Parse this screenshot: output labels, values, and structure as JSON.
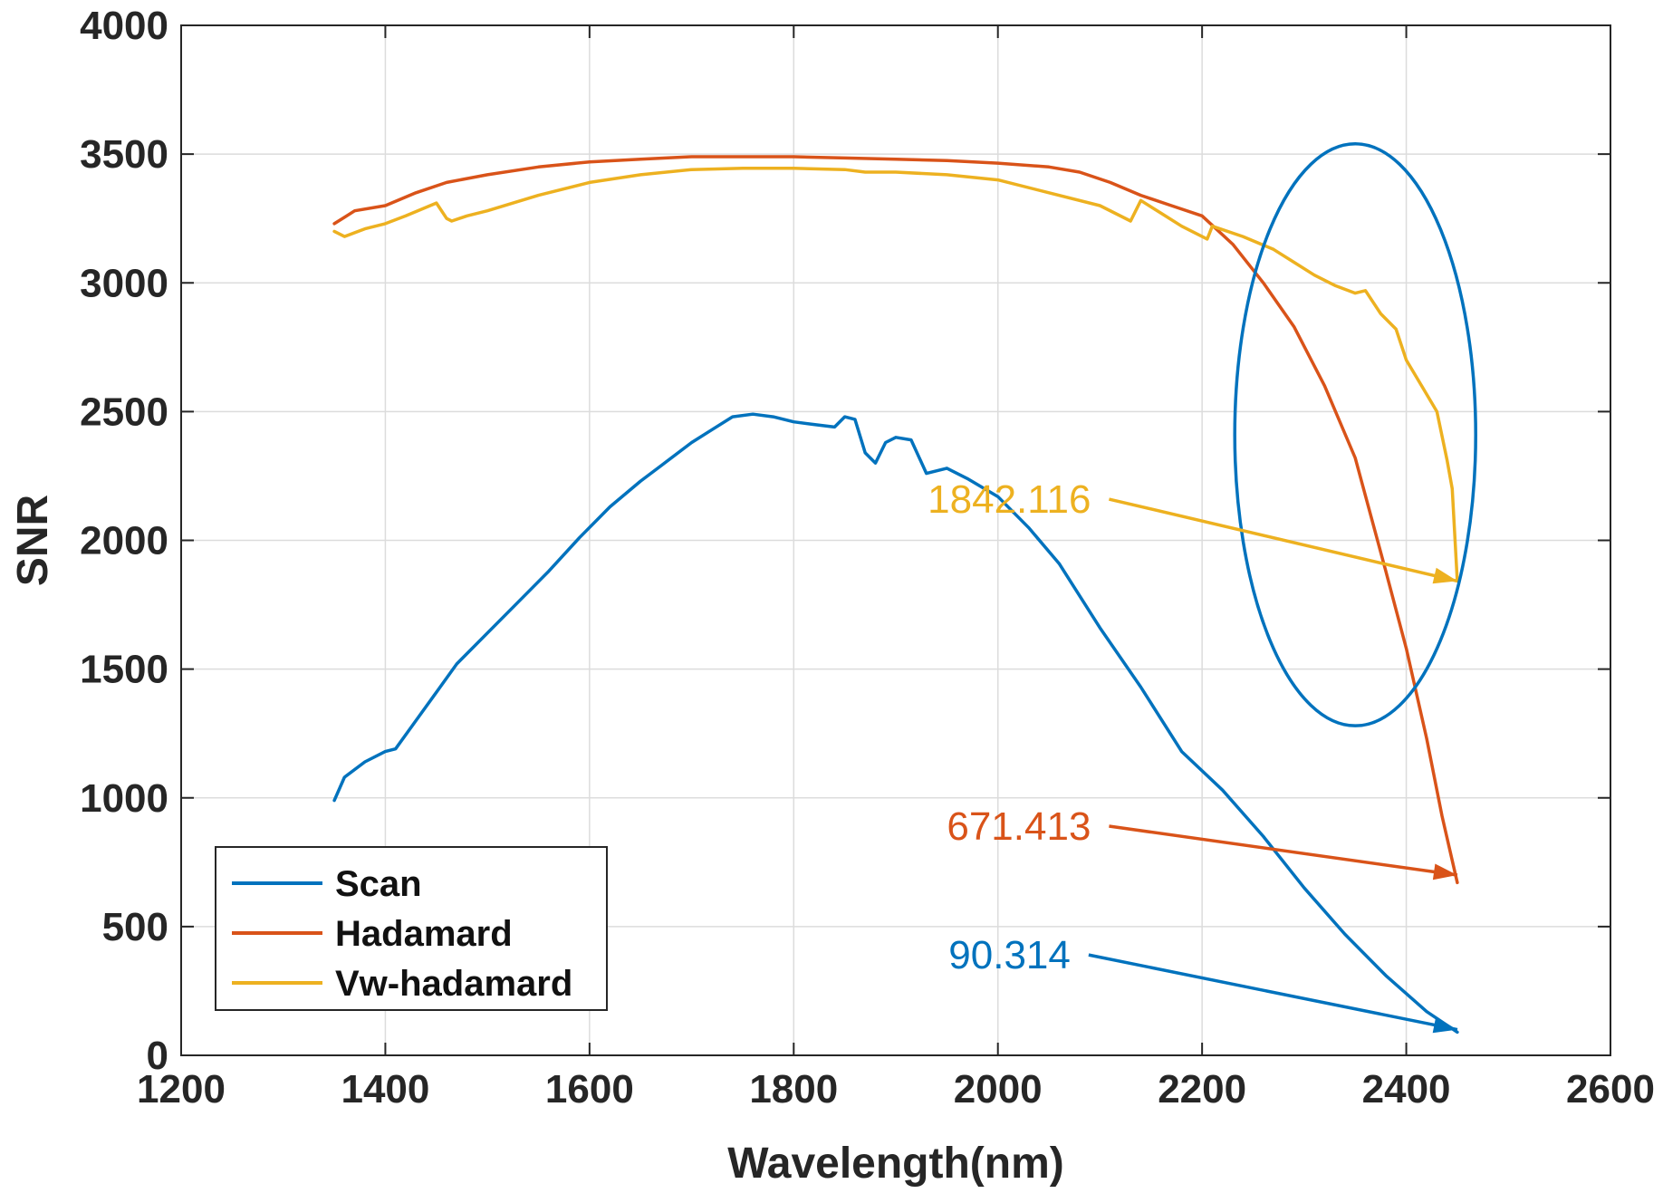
{
  "chart_data": {
    "type": "line",
    "title": "",
    "xlabel": "Wavelength(nm)",
    "ylabel": "SNR",
    "xlim": [
      1200,
      2600
    ],
    "ylim": [
      0,
      4000
    ],
    "xticks": [
      1200,
      1400,
      1600,
      1800,
      2000,
      2200,
      2400,
      2600
    ],
    "yticks": [
      0,
      500,
      1000,
      1500,
      2000,
      2500,
      3000,
      3500,
      4000
    ],
    "grid": true,
    "legend_position": "bottom-left",
    "series": [
      {
        "name": "Scan",
        "color": "#0072BD",
        "x": [
          1350,
          1360,
          1380,
          1400,
          1410,
          1430,
          1450,
          1470,
          1500,
          1530,
          1560,
          1590,
          1620,
          1650,
          1670,
          1700,
          1720,
          1740,
          1760,
          1780,
          1800,
          1820,
          1840,
          1850,
          1860,
          1870,
          1880,
          1890,
          1900,
          1915,
          1930,
          1950,
          1970,
          2000,
          2030,
          2060,
          2100,
          2140,
          2180,
          2220,
          2260,
          2300,
          2340,
          2380,
          2420,
          2450
        ],
        "y": [
          990,
          1080,
          1140,
          1180,
          1190,
          1300,
          1410,
          1520,
          1640,
          1760,
          1880,
          2010,
          2130,
          2230,
          2290,
          2380,
          2430,
          2480,
          2490,
          2480,
          2460,
          2450,
          2440,
          2480,
          2470,
          2340,
          2300,
          2380,
          2400,
          2390,
          2260,
          2280,
          2240,
          2170,
          2050,
          1910,
          1660,
          1430,
          1180,
          1030,
          850,
          650,
          470,
          310,
          170,
          90
        ]
      },
      {
        "name": "Hadamard",
        "color": "#D95319",
        "x": [
          1350,
          1370,
          1400,
          1430,
          1460,
          1500,
          1550,
          1600,
          1650,
          1700,
          1750,
          1800,
          1850,
          1900,
          1950,
          2000,
          2050,
          2080,
          2110,
          2140,
          2170,
          2200,
          2230,
          2260,
          2290,
          2320,
          2350,
          2380,
          2400,
          2420,
          2435,
          2450
        ],
        "y": [
          3230,
          3280,
          3300,
          3350,
          3390,
          3420,
          3450,
          3470,
          3480,
          3490,
          3490,
          3490,
          3485,
          3480,
          3475,
          3465,
          3450,
          3430,
          3390,
          3340,
          3300,
          3260,
          3150,
          3000,
          2830,
          2600,
          2320,
          1880,
          1580,
          1230,
          930,
          671
        ]
      },
      {
        "name": "Vw-hadamard",
        "color": "#EDB120",
        "x": [
          1350,
          1360,
          1380,
          1400,
          1420,
          1450,
          1460,
          1465,
          1480,
          1500,
          1550,
          1600,
          1650,
          1700,
          1750,
          1800,
          1850,
          1870,
          1900,
          1950,
          2000,
          2050,
          2100,
          2130,
          2140,
          2160,
          2180,
          2205,
          2210,
          2240,
          2270,
          2290,
          2310,
          2330,
          2350,
          2360,
          2375,
          2390,
          2400,
          2415,
          2430,
          2440,
          2445,
          2450
        ],
        "y": [
          3200,
          3180,
          3210,
          3230,
          3260,
          3310,
          3250,
          3240,
          3260,
          3280,
          3340,
          3390,
          3420,
          3440,
          3445,
          3445,
          3440,
          3430,
          3430,
          3420,
          3400,
          3350,
          3300,
          3240,
          3320,
          3270,
          3220,
          3170,
          3220,
          3180,
          3130,
          3080,
          3030,
          2990,
          2960,
          2970,
          2880,
          2820,
          2700,
          2600,
          2500,
          2310,
          2200,
          1842
        ]
      }
    ],
    "annotations": [
      {
        "text": "1842.116",
        "series": "Vw-hadamard",
        "target": [
          2450,
          1842
        ],
        "text_anchor": [
          2100,
          2160
        ],
        "color": "#EDB120"
      },
      {
        "text": "671.413",
        "series": "Hadamard",
        "target": [
          2450,
          700
        ],
        "text_anchor": [
          2100,
          890
        ],
        "color": "#D95319"
      },
      {
        "text": "90.314",
        "series": "Scan",
        "target": [
          2450,
          100
        ],
        "text_anchor": [
          2080,
          390
        ],
        "color": "#0072BD"
      }
    ],
    "highlight_ellipse": {
      "center": [
        2350,
        2410
      ],
      "x_radius": 118,
      "y_radius": 1130,
      "color": "#0072BD"
    }
  }
}
